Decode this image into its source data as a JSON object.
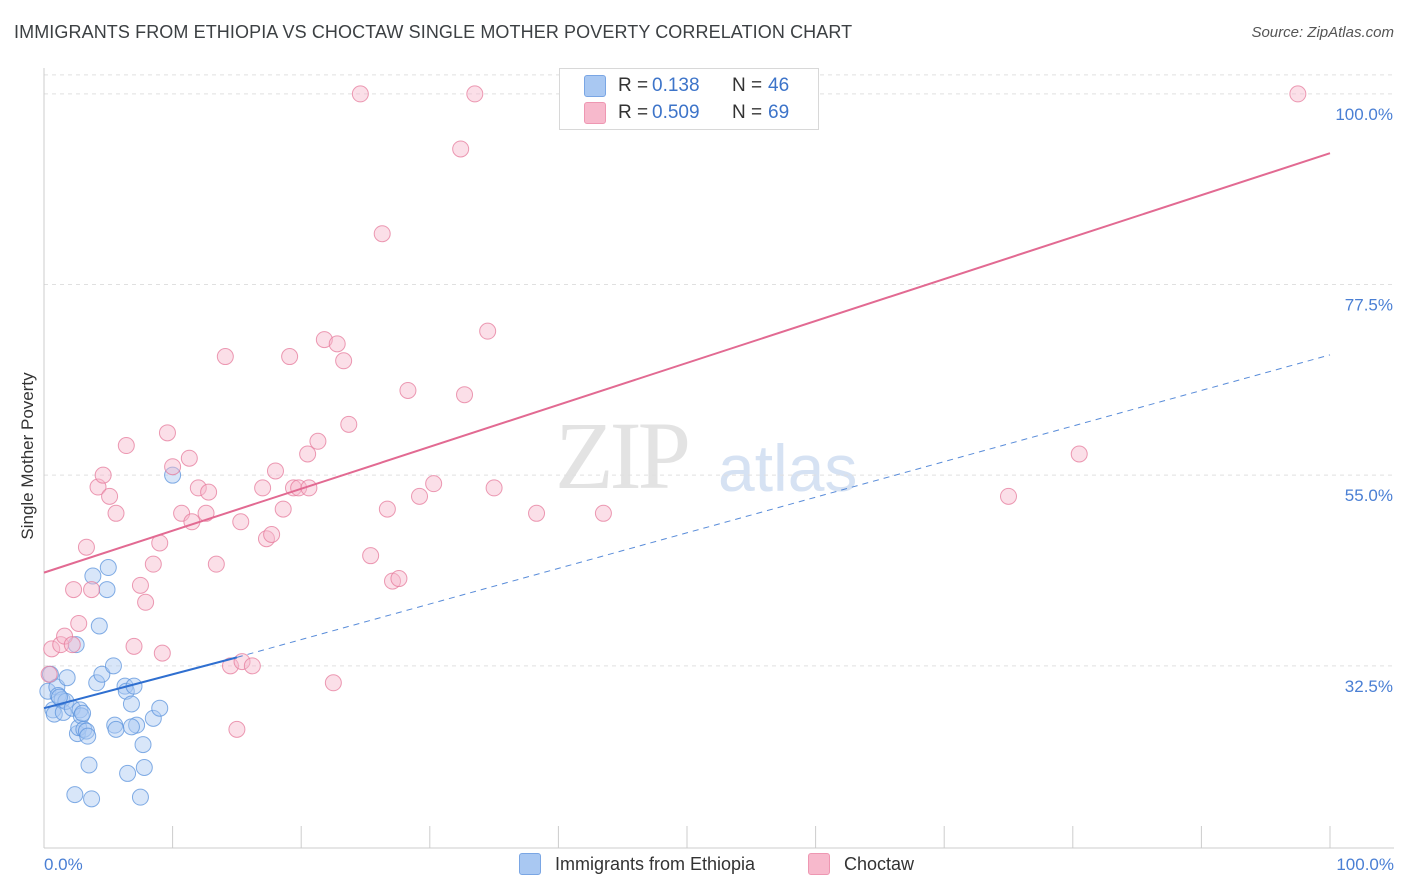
{
  "title": "IMMIGRANTS FROM ETHIOPIA VS CHOCTAW SINGLE MOTHER POVERTY CORRELATION CHART",
  "source": "Source: ZipAtlas.com",
  "watermark": {
    "zip": "ZIP",
    "atlas": "atlas"
  },
  "legend_top": {
    "rows": [
      {
        "r_label": "R =",
        "r_value": "0.138",
        "n_label": "N =",
        "n_value": "46",
        "color": "#a9c8f2"
      },
      {
        "r_label": "R =",
        "r_value": "0.509",
        "n_label": "N =",
        "n_value": "69",
        "color": "#f7b9cc"
      }
    ]
  },
  "legend_bottom": {
    "items": [
      {
        "label": "Immigrants from Ethiopia",
        "color": "#a9c8f2"
      },
      {
        "label": "Choctaw",
        "color": "#f7b9cc"
      }
    ]
  },
  "chart_data": {
    "type": "scatter",
    "title": "IMMIGRANTS FROM ETHIOPIA VS CHOCTAW SINGLE MOTHER POVERTY CORRELATION CHART",
    "xlabel": "",
    "ylabel": "Single Mother Poverty",
    "xlim": [
      0,
      100
    ],
    "ylim": [
      11,
      104
    ],
    "x_tick_labels": [
      "0.0%",
      "100.0%"
    ],
    "y_ticks": [
      32.5,
      55.0,
      77.5,
      100.0
    ],
    "y_tick_labels": [
      "32.5%",
      "55.0%",
      "77.5%",
      "100.0%"
    ],
    "grid": true,
    "series": [
      {
        "name": "Immigrants from Ethiopia",
        "color": "#5b93dc",
        "fill": "rgba(169,200,242,0.45)",
        "trend": {
          "x0": 0,
          "y0": 27.5,
          "x1": 15,
          "y1": 33.5,
          "dashed_to_x": 100,
          "dashed_to_y": 69.2,
          "color": "#2f6fd0"
        },
        "points": [
          [
            0.3,
            29.5
          ],
          [
            0.5,
            31.5
          ],
          [
            0.7,
            27.3
          ],
          [
            0.8,
            26.8
          ],
          [
            1.0,
            30.0
          ],
          [
            1.1,
            29.0
          ],
          [
            1.4,
            28.5
          ],
          [
            1.5,
            27.0
          ],
          [
            1.7,
            28.3
          ],
          [
            1.8,
            31.1
          ],
          [
            2.2,
            27.5
          ],
          [
            2.4,
            17.3
          ],
          [
            2.5,
            35.0
          ],
          [
            2.6,
            24.5
          ],
          [
            2.7,
            25.2
          ],
          [
            2.8,
            27.3
          ],
          [
            2.9,
            26.6
          ],
          [
            3.1,
            25.0
          ],
          [
            3.3,
            24.8
          ],
          [
            3.4,
            24.2
          ],
          [
            3.5,
            20.8
          ],
          [
            3.7,
            16.8
          ],
          [
            3.8,
            43.1
          ],
          [
            4.1,
            30.5
          ],
          [
            4.3,
            37.2
          ],
          [
            4.5,
            31.5
          ],
          [
            4.9,
            41.5
          ],
          [
            5.0,
            44.1
          ],
          [
            5.4,
            32.5
          ],
          [
            5.5,
            25.5
          ],
          [
            5.6,
            25.0
          ],
          [
            6.3,
            30.1
          ],
          [
            6.4,
            29.5
          ],
          [
            6.5,
            19.8
          ],
          [
            6.8,
            28.0
          ],
          [
            7.0,
            30.1
          ],
          [
            7.2,
            25.5
          ],
          [
            7.5,
            17.0
          ],
          [
            7.7,
            23.2
          ],
          [
            7.8,
            20.5
          ],
          [
            8.5,
            26.3
          ],
          [
            9.0,
            27.5
          ],
          [
            10.0,
            55.0
          ],
          [
            6.8,
            25.3
          ],
          [
            1.2,
            28.8
          ],
          [
            3.0,
            26.9
          ]
        ]
      },
      {
        "name": "Choctaw",
        "color": "#e67a9b",
        "fill": "rgba(247,185,204,0.45)",
        "trend": {
          "x0": 0,
          "y0": 43.5,
          "x1": 100,
          "y1": 93.0,
          "color": "#e26a92"
        },
        "points": [
          [
            0.4,
            31.5
          ],
          [
            0.6,
            34.5
          ],
          [
            1.3,
            35.0
          ],
          [
            1.6,
            36.0
          ],
          [
            2.2,
            35.0
          ],
          [
            2.3,
            41.5
          ],
          [
            2.7,
            37.5
          ],
          [
            3.3,
            46.5
          ],
          [
            3.7,
            41.5
          ],
          [
            4.2,
            53.6
          ],
          [
            4.6,
            55.0
          ],
          [
            5.1,
            52.5
          ],
          [
            5.6,
            50.5
          ],
          [
            6.4,
            58.5
          ],
          [
            7.0,
            34.8
          ],
          [
            7.5,
            42.0
          ],
          [
            7.9,
            40.0
          ],
          [
            8.5,
            44.5
          ],
          [
            9.0,
            47.0
          ],
          [
            9.2,
            34.0
          ],
          [
            9.6,
            60.0
          ],
          [
            10.0,
            56.0
          ],
          [
            10.7,
            50.5
          ],
          [
            11.3,
            57.0
          ],
          [
            11.5,
            49.5
          ],
          [
            12.0,
            53.5
          ],
          [
            12.6,
            50.5
          ],
          [
            12.8,
            53.0
          ],
          [
            13.4,
            44.5
          ],
          [
            14.1,
            69.0
          ],
          [
            14.5,
            32.5
          ],
          [
            15.0,
            25.0
          ],
          [
            15.3,
            49.5
          ],
          [
            15.4,
            33.0
          ],
          [
            16.2,
            32.5
          ],
          [
            17.0,
            53.5
          ],
          [
            17.3,
            47.5
          ],
          [
            17.7,
            48.0
          ],
          [
            18.0,
            55.5
          ],
          [
            18.6,
            51.0
          ],
          [
            19.1,
            69.0
          ],
          [
            19.4,
            53.5
          ],
          [
            19.8,
            53.5
          ],
          [
            20.5,
            57.5
          ],
          [
            20.6,
            53.5
          ],
          [
            21.3,
            59.0
          ],
          [
            21.8,
            71.0
          ],
          [
            22.5,
            30.5
          ],
          [
            22.8,
            70.5
          ],
          [
            23.3,
            68.5
          ],
          [
            23.7,
            61.0
          ],
          [
            24.6,
            100.0
          ],
          [
            25.4,
            45.5
          ],
          [
            26.3,
            83.5
          ],
          [
            26.7,
            51.0
          ],
          [
            27.1,
            42.5
          ],
          [
            27.6,
            42.8
          ],
          [
            28.3,
            65.0
          ],
          [
            29.2,
            52.5
          ],
          [
            30.3,
            54.0
          ],
          [
            32.4,
            93.5
          ],
          [
            32.7,
            64.5
          ],
          [
            33.5,
            100.0
          ],
          [
            34.5,
            72.0
          ],
          [
            35.0,
            53.5
          ],
          [
            38.3,
            50.5
          ],
          [
            43.5,
            50.5
          ],
          [
            75.0,
            52.5
          ],
          [
            80.5,
            57.5
          ],
          [
            97.5,
            100.0
          ]
        ]
      }
    ]
  }
}
